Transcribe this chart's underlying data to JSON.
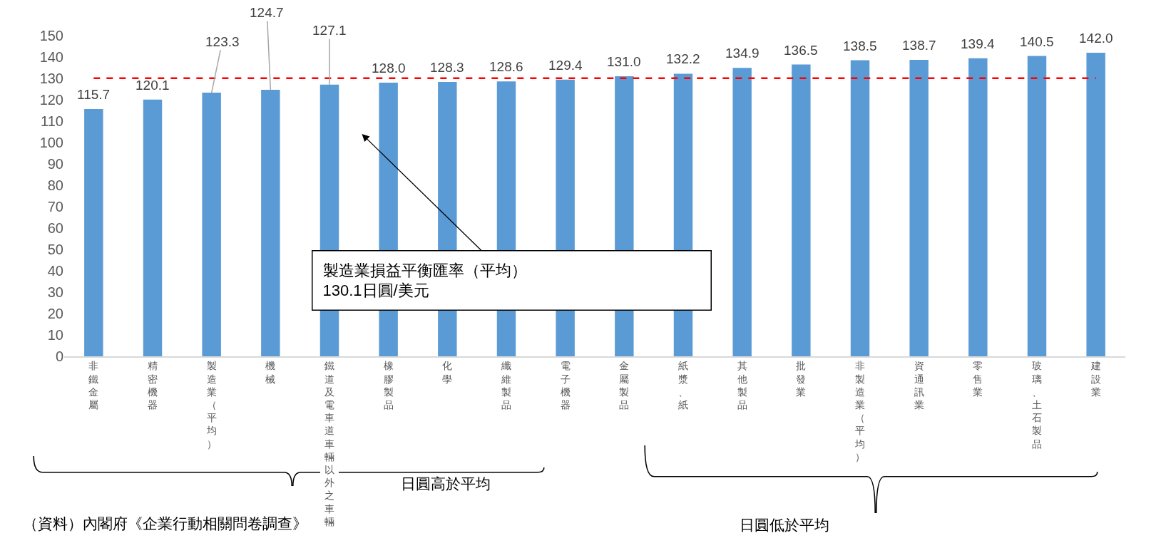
{
  "chart_data": {
    "type": "bar",
    "categories": [
      "非鐵金屬",
      "精密機器",
      "製造業（平均）",
      "機械",
      "鐵道及電車道車輛以外之車輛",
      "橡膠製品",
      "化學",
      "纖維製品",
      "電子機器",
      "金屬製品",
      "紙漿、紙",
      "其他製品",
      "批發業",
      "非製造業（平均）",
      "資通訊業",
      "零售業",
      "玻璃、土石製品",
      "建設業"
    ],
    "values": [
      115.7,
      120.1,
      123.3,
      124.7,
      127.1,
      128.0,
      128.3,
      128.6,
      129.4,
      131.0,
      132.2,
      134.9,
      136.5,
      138.5,
      138.7,
      139.4,
      140.5,
      142.0
    ],
    "value_labels": [
      "115.7",
      "120.1",
      "123.3",
      "124.7",
      "127.1",
      "128.0",
      "128.3",
      "128.6",
      "129.4",
      "131.0",
      "132.2",
      "134.9",
      "136.5",
      "138.5",
      "138.7",
      "139.4",
      "140.5",
      "142.0"
    ],
    "color": "#5b9bd5",
    "ylim": [
      0,
      150
    ],
    "yticks": [
      0,
      10,
      20,
      30,
      40,
      50,
      60,
      70,
      80,
      90,
      100,
      110,
      120,
      130,
      140,
      150
    ],
    "grid": false,
    "ref_lines": [
      {
        "axis": "y",
        "value": 130.1,
        "color": "#ff0000",
        "line_style": "dashed"
      }
    ],
    "annotations": [
      "製造業損益平衡匯率（平均）\n130.1日圓/美元",
      "日圓高於平均",
      "日圓低於平均",
      "（資料）內閣府《企業行動相關問卷調查》"
    ]
  }
}
